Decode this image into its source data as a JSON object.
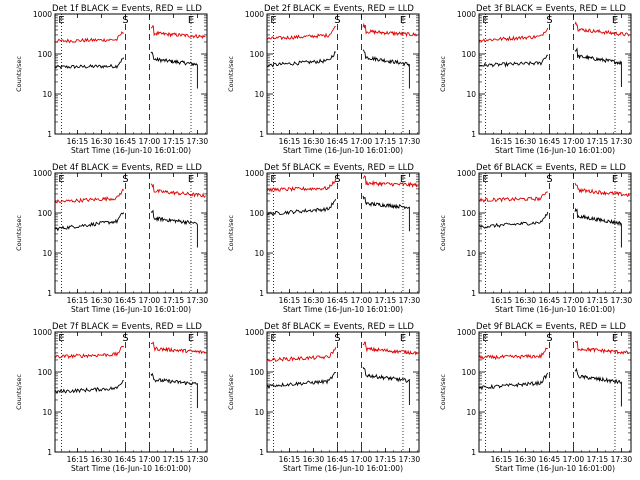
{
  "figure": {
    "xlabel": "Start Time (16-Jun-10 16:01:00)",
    "ylabel": "Counts/sec",
    "yticks": [
      "1",
      "10",
      "100",
      "1000"
    ],
    "xticks": [
      "16:15",
      "16:30",
      "16:45",
      "17:00",
      "17:15",
      "17:30"
    ],
    "marker_E": "E",
    "marker_S": "S",
    "colors": {
      "events": "#000000",
      "lld": "#e00000",
      "axes": "#000000"
    }
  },
  "chart_data": [
    {
      "type": "line",
      "title": "Det 1f BLACK = Events, RED = LLD",
      "ylim": [
        1,
        1000
      ],
      "yscale": "log",
      "grid": false,
      "vlines_dotted": [
        "16:05",
        "17:26"
      ],
      "vlines_dashed": [
        "16:45",
        "17:00"
      ],
      "series": [
        {
          "name": "Events",
          "color": "#000000",
          "segments": [
            {
              "x": [
                "16:01",
                "16:44"
              ],
              "y": [
                47,
                50
              ]
            },
            {
              "x": [
                "17:01",
                "17:30"
              ],
              "y": [
                75,
                55
              ]
            }
          ]
        },
        {
          "name": "LLD",
          "color": "#e00000",
          "segments": [
            {
              "x": [
                "16:01",
                "16:44"
              ],
              "y": [
                210,
                230
              ]
            },
            {
              "x": [
                "17:01",
                "17:35"
              ],
              "y": [
                330,
                270
              ]
            }
          ]
        }
      ]
    },
    {
      "type": "line",
      "title": "Det 2f BLACK = Events, RED = LLD",
      "ylim": [
        1,
        1000
      ],
      "yscale": "log",
      "grid": false,
      "vlines_dotted": [
        "16:05",
        "17:26"
      ],
      "vlines_dashed": [
        "16:45",
        "17:00"
      ],
      "series": [
        {
          "name": "Events",
          "color": "#000000",
          "segments": [
            {
              "x": [
                "16:01",
                "16:44"
              ],
              "y": [
                52,
                70
              ]
            },
            {
              "x": [
                "17:01",
                "17:30"
              ],
              "y": [
                85,
                55
              ]
            }
          ]
        },
        {
          "name": "LLD",
          "color": "#e00000",
          "segments": [
            {
              "x": [
                "16:01",
                "16:44"
              ],
              "y": [
                240,
                300
              ]
            },
            {
              "x": [
                "17:01",
                "17:35"
              ],
              "y": [
                370,
                300
              ]
            }
          ]
        }
      ]
    },
    {
      "type": "line",
      "title": "Det 3f BLACK = Events, RED = LLD",
      "ylim": [
        1,
        1000
      ],
      "yscale": "log",
      "grid": false,
      "vlines_dotted": [
        "16:05",
        "17:26"
      ],
      "vlines_dashed": [
        "16:45",
        "17:00"
      ],
      "series": [
        {
          "name": "Events",
          "color": "#000000",
          "segments": [
            {
              "x": [
                "16:01",
                "16:44"
              ],
              "y": [
                52,
                60
              ]
            },
            {
              "x": [
                "17:01",
                "17:30"
              ],
              "y": [
                90,
                60
              ]
            }
          ]
        },
        {
          "name": "LLD",
          "color": "#e00000",
          "segments": [
            {
              "x": [
                "16:01",
                "16:44"
              ],
              "y": [
                220,
                280
              ]
            },
            {
              "x": [
                "17:01",
                "17:35"
              ],
              "y": [
                420,
                300
              ]
            }
          ]
        }
      ]
    },
    {
      "type": "line",
      "title": "Det 4f BLACK = Events, RED = LLD",
      "ylim": [
        1,
        1000
      ],
      "yscale": "log",
      "grid": false,
      "vlines_dotted": [
        "16:05",
        "17:26"
      ],
      "vlines_dashed": [
        "16:45",
        "17:00"
      ],
      "series": [
        {
          "name": "Events",
          "color": "#000000",
          "segments": [
            {
              "x": [
                "16:01",
                "16:44"
              ],
              "y": [
                40,
                65
              ]
            },
            {
              "x": [
                "17:01",
                "17:30"
              ],
              "y": [
                75,
                55
              ]
            }
          ]
        },
        {
          "name": "LLD",
          "color": "#e00000",
          "segments": [
            {
              "x": [
                "16:01",
                "16:44"
              ],
              "y": [
                190,
                240
              ]
            },
            {
              "x": [
                "17:01",
                "17:35"
              ],
              "y": [
                360,
                270
              ]
            }
          ]
        }
      ]
    },
    {
      "type": "line",
      "title": "Det 5f BLACK = Events, RED = LLD",
      "ylim": [
        1,
        1000
      ],
      "yscale": "log",
      "grid": false,
      "vlines_dotted": [
        "16:05",
        "17:26"
      ],
      "vlines_dashed": [
        "16:45",
        "17:00"
      ],
      "series": [
        {
          "name": "Events",
          "color": "#000000",
          "segments": [
            {
              "x": [
                "16:01",
                "16:44"
              ],
              "y": [
                95,
                130
              ]
            },
            {
              "x": [
                "17:01",
                "17:30"
              ],
              "y": [
                175,
                140
              ]
            }
          ]
        },
        {
          "name": "LLD",
          "color": "#e00000",
          "segments": [
            {
              "x": [
                "16:01",
                "16:44"
              ],
              "y": [
                380,
                420
              ]
            },
            {
              "x": [
                "17:01",
                "17:35"
              ],
              "y": [
                560,
                500
              ]
            }
          ]
        }
      ]
    },
    {
      "type": "line",
      "title": "Det 6f BLACK = Events, RED = LLD",
      "ylim": [
        1,
        1000
      ],
      "yscale": "log",
      "grid": false,
      "vlines_dotted": [
        "16:05",
        "17:26"
      ],
      "vlines_dashed": [
        "16:45",
        "17:00"
      ],
      "series": [
        {
          "name": "Events",
          "color": "#000000",
          "segments": [
            {
              "x": [
                "16:01",
                "16:44"
              ],
              "y": [
                45,
                60
              ]
            },
            {
              "x": [
                "17:01",
                "17:30"
              ],
              "y": [
                85,
                55
              ]
            }
          ]
        },
        {
          "name": "LLD",
          "color": "#e00000",
          "segments": [
            {
              "x": [
                "16:01",
                "16:44"
              ],
              "y": [
                210,
                230
              ]
            },
            {
              "x": [
                "17:01",
                "17:35"
              ],
              "y": [
                380,
                280
              ]
            }
          ]
        }
      ]
    },
    {
      "type": "line",
      "title": "Det 7f BLACK = Events, RED = LLD",
      "ylim": [
        1,
        1000
      ],
      "yscale": "log",
      "grid": false,
      "vlines_dotted": [
        "16:05",
        "17:26"
      ],
      "vlines_dashed": [
        "16:45",
        "17:00"
      ],
      "series": [
        {
          "name": "Events",
          "color": "#000000",
          "segments": [
            {
              "x": [
                "16:01",
                "16:44"
              ],
              "y": [
                32,
                40
              ]
            },
            {
              "x": [
                "17:01",
                "17:30"
              ],
              "y": [
                65,
                50
              ]
            }
          ]
        },
        {
          "name": "LLD",
          "color": "#e00000",
          "segments": [
            {
              "x": [
                "16:01",
                "16:44"
              ],
              "y": [
                240,
                280
              ]
            },
            {
              "x": [
                "17:01",
                "17:35"
              ],
              "y": [
                390,
                310
              ]
            }
          ]
        }
      ]
    },
    {
      "type": "line",
      "title": "Det 8f BLACK = Events, RED = LLD",
      "ylim": [
        1,
        1000
      ],
      "yscale": "log",
      "grid": false,
      "vlines_dotted": [
        "16:05",
        "17:26"
      ],
      "vlines_dashed": [
        "16:45",
        "17:00"
      ],
      "series": [
        {
          "name": "Events",
          "color": "#000000",
          "segments": [
            {
              "x": [
                "16:01",
                "16:44"
              ],
              "y": [
                45,
                60
              ]
            },
            {
              "x": [
                "17:01",
                "17:30"
              ],
              "y": [
                85,
                60
              ]
            }
          ]
        },
        {
          "name": "LLD",
          "color": "#e00000",
          "segments": [
            {
              "x": [
                "16:01",
                "16:44"
              ],
              "y": [
                200,
                240
              ]
            },
            {
              "x": [
                "17:01",
                "17:35"
              ],
              "y": [
                380,
                300
              ]
            }
          ]
        }
      ]
    },
    {
      "type": "line",
      "title": "Det 9f BLACK = Events, RED = LLD",
      "ylim": [
        1,
        1000
      ],
      "yscale": "log",
      "grid": false,
      "vlines_dotted": [
        "16:05",
        "17:26"
      ],
      "vlines_dashed": [
        "16:45",
        "17:00"
      ],
      "series": [
        {
          "name": "Events",
          "color": "#000000",
          "segments": [
            {
              "x": [
                "16:01",
                "16:44"
              ],
              "y": [
                40,
                55
              ]
            },
            {
              "x": [
                "17:01",
                "17:30"
              ],
              "y": [
                80,
                55
              ]
            }
          ]
        },
        {
          "name": "LLD",
          "color": "#e00000",
          "segments": [
            {
              "x": [
                "16:01",
                "16:44"
              ],
              "y": [
                230,
                250
              ]
            },
            {
              "x": [
                "17:01",
                "17:35"
              ],
              "y": [
                390,
                300
              ]
            }
          ]
        }
      ]
    }
  ]
}
